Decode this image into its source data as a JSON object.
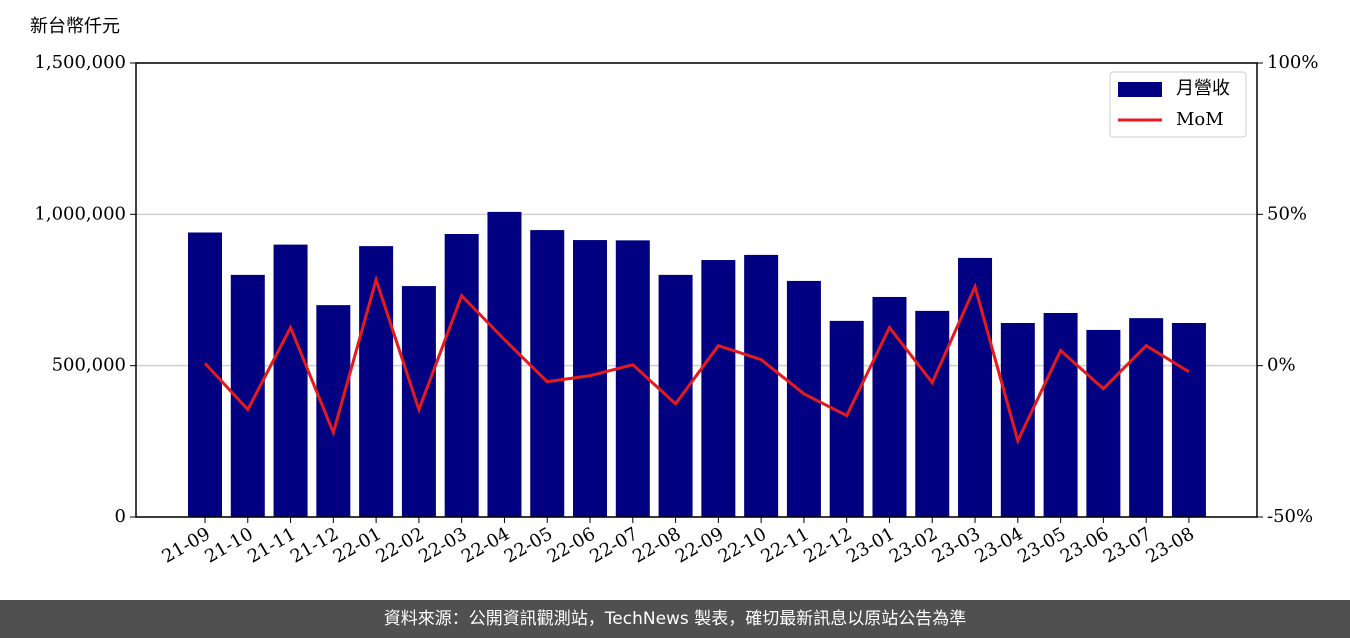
{
  "chart_data": {
    "type": "bar",
    "y_label": "新台幣仟元",
    "categories": [
      "21-09",
      "21-10",
      "21-11",
      "21-12",
      "22-01",
      "22-02",
      "22-03",
      "22-04",
      "22-05",
      "22-06",
      "22-07",
      "22-08",
      "22-09",
      "22-10",
      "22-11",
      "22-12",
      "23-01",
      "23-02",
      "23-03",
      "23-04",
      "23-05",
      "23-06",
      "23-07",
      "23-08"
    ],
    "series": [
      {
        "name": "月營收",
        "type": "bar",
        "color": "#000080",
        "values": [
          940000,
          800000,
          900000,
          700000,
          895000,
          763000,
          935000,
          1008000,
          948000,
          915000,
          914000,
          800000,
          849000,
          866000,
          780000,
          648000,
          727000,
          681000,
          856000,
          641000,
          674000,
          618000,
          657000,
          641000
        ]
      },
      {
        "name": "MoM",
        "type": "line",
        "axis": "y2",
        "color": "#e41a1c",
        "values": [
          0.8,
          -14.5,
          12.6,
          -22.1,
          28.4,
          -14.5,
          23.1,
          8.6,
          -5.3,
          -3.3,
          0.3,
          -12.6,
          6.6,
          2.0,
          -9.3,
          -16.5,
          12.6,
          -5.6,
          26.1,
          -24.8,
          5.0,
          -7.6,
          6.6,
          -2.0
        ]
      }
    ],
    "ylim": [
      0,
      1500000
    ],
    "yticks": [
      0,
      {
        "value": 500000,
        "label": "500,000"
      },
      {
        "value": 1000000,
        "label": "1,000,000"
      },
      {
        "value": 1500000,
        "label": "1,500,000"
      }
    ],
    "y2lim": [
      -50,
      100
    ],
    "y2ticks": [
      {
        "value": -50,
        "label": "-50%"
      },
      {
        "value": 0,
        "label": "0%"
      },
      {
        "value": 50,
        "label": "50%"
      },
      {
        "value": 100,
        "label": "100%"
      }
    ],
    "grid": true,
    "legend": "upper right",
    "footer": "資料來源：公開資訊觀測站，TechNews 製表，確切最新訊息以原站公告為準"
  }
}
